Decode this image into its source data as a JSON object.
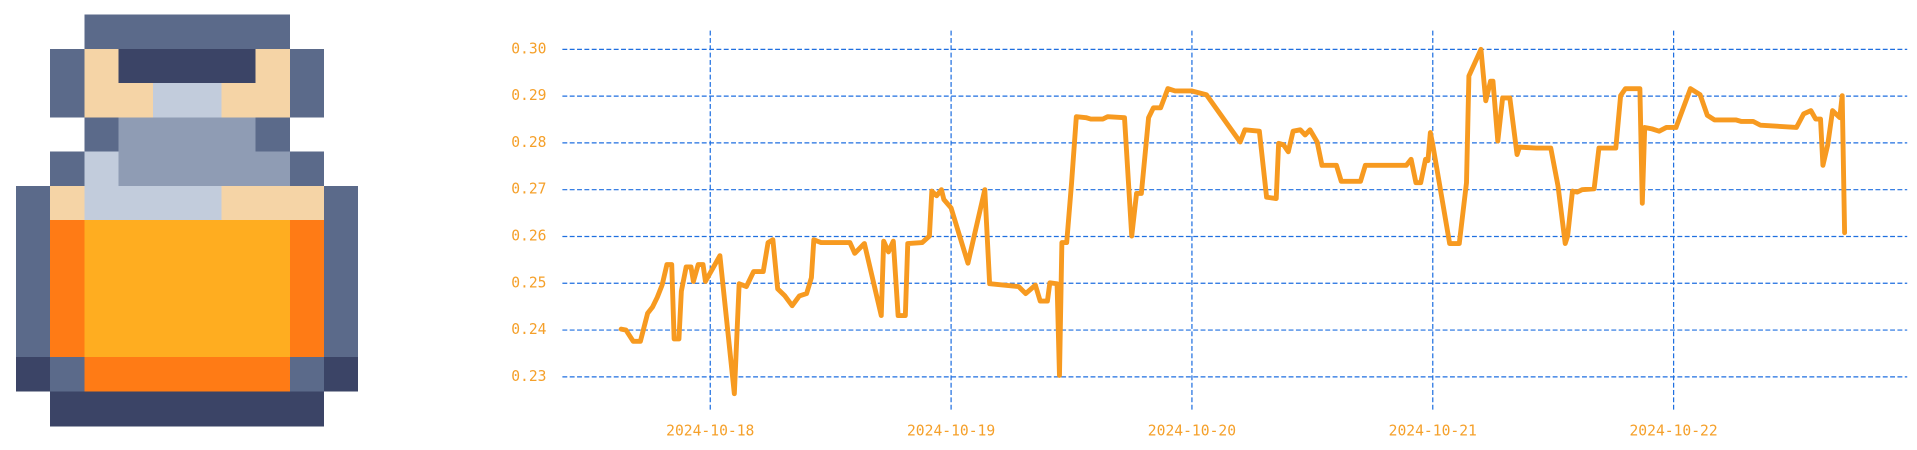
{
  "chart_data": {
    "type": "line",
    "color": "#f79a20",
    "grid": true,
    "grid_color": "#1f6fe0",
    "x": [
      17.63,
      17.65,
      17.68,
      17.71,
      17.74,
      17.76,
      17.78,
      17.8,
      17.82,
      17.84,
      17.85,
      17.87,
      17.88,
      17.9,
      17.92,
      17.93,
      17.95,
      17.97,
      17.98,
      18.04,
      18.1,
      18.12,
      18.15,
      18.18,
      18.22,
      18.24,
      18.26,
      18.28,
      18.31,
      18.34,
      18.37,
      18.4,
      18.42,
      18.43,
      18.46,
      18.49,
      18.58,
      18.6,
      18.64,
      18.71,
      18.72,
      18.74,
      18.76,
      18.78,
      18.81,
      18.82,
      18.88,
      18.91,
      18.92,
      18.94,
      18.96,
      18.97,
      19.0,
      19.07,
      19.14,
      19.16,
      19.28,
      19.31,
      19.35,
      19.37,
      19.4,
      19.41,
      19.44,
      19.45,
      19.46,
      19.48,
      19.5,
      19.52,
      19.56,
      19.58,
      19.63,
      19.65,
      19.72,
      19.75,
      19.77,
      19.79,
      19.82,
      19.84,
      19.87,
      19.9,
      19.93,
      20.0,
      20.06,
      20.2,
      20.22,
      20.28,
      20.31,
      20.35,
      20.36,
      20.38,
      20.4,
      20.42,
      20.45,
      20.47,
      20.49,
      20.52,
      20.54,
      20.6,
      20.62,
      20.7,
      20.72,
      20.89,
      20.91,
      20.93,
      20.95,
      20.97,
      20.98,
      20.99,
      21.0,
      21.07,
      21.11,
      21.14,
      21.15,
      21.2,
      21.22,
      21.24,
      21.25,
      21.27,
      21.29,
      21.32,
      21.35,
      21.36,
      21.43,
      21.49,
      21.52,
      21.55,
      21.56,
      21.58,
      21.6,
      21.62,
      21.67,
      21.69,
      21.76,
      21.78,
      21.8,
      21.86,
      21.87,
      21.88,
      21.91,
      21.94,
      21.97,
      22.01,
      22.07,
      22.11,
      22.14,
      22.17,
      22.26,
      22.28,
      22.33,
      22.36,
      22.51,
      22.54,
      22.57,
      22.59,
      22.61,
      22.62,
      22.64,
      22.66,
      22.69,
      22.7,
      22.71
    ],
    "values": [
      0.2402,
      0.24,
      0.2376,
      0.2376,
      0.2436,
      0.2449,
      0.247,
      0.2496,
      0.254,
      0.254,
      0.2381,
      0.2381,
      0.2483,
      0.2535,
      0.2535,
      0.2504,
      0.254,
      0.254,
      0.2504,
      0.2559,
      0.2264,
      0.2499,
      0.2493,
      0.2525,
      0.2525,
      0.2587,
      0.2593,
      0.2488,
      0.2473,
      0.2452,
      0.2473,
      0.2478,
      0.2512,
      0.2593,
      0.2587,
      0.2587,
      0.2587,
      0.2564,
      0.2585,
      0.2431,
      0.259,
      0.2567,
      0.259,
      0.2431,
      0.2431,
      0.2585,
      0.2587,
      0.2601,
      0.2697,
      0.2687,
      0.27,
      0.2679,
      0.2661,
      0.2543,
      0.27,
      0.2499,
      0.2493,
      0.2478,
      0.2496,
      0.2462,
      0.2462,
      0.2501,
      0.2499,
      0.2303,
      0.2587,
      0.2587,
      0.2713,
      0.2856,
      0.2854,
      0.2851,
      0.2851,
      0.2856,
      0.2854,
      0.2601,
      0.2692,
      0.2692,
      0.2854,
      0.2875,
      0.2875,
      0.2916,
      0.2911,
      0.2911,
      0.2903,
      0.2802,
      0.2828,
      0.2825,
      0.2684,
      0.2681,
      0.2799,
      0.2796,
      0.2781,
      0.2825,
      0.2828,
      0.2817,
      0.2828,
      0.2802,
      0.2752,
      0.2752,
      0.2718,
      0.2718,
      0.2752,
      0.2752,
      0.2765,
      0.2715,
      0.2715,
      0.2765,
      0.2762,
      0.2822,
      0.2796,
      0.2585,
      0.2585,
      0.2715,
      0.2943,
      0.3,
      0.289,
      0.2932,
      0.2932,
      0.2804,
      0.2896,
      0.2896,
      0.2775,
      0.2791,
      0.2789,
      0.2789,
      0.2708,
      0.2585,
      0.2601,
      0.2697,
      0.2695,
      0.27,
      0.2702,
      0.2789,
      0.2789,
      0.2901,
      0.2916,
      0.2916,
      0.2671,
      0.2833,
      0.283,
      0.2825,
      0.2833,
      0.2833,
      0.2916,
      0.2903,
      0.2859,
      0.2849,
      0.2849,
      0.2846,
      0.2846,
      0.2838,
      0.2833,
      0.2862,
      0.2869,
      0.2851,
      0.2851,
      0.2752,
      0.2796,
      0.2869,
      0.2854,
      0.2901,
      0.2608
    ],
    "xlim": [
      17.386,
      22.97
    ],
    "xticks": [
      {
        "value": 18,
        "label": "2024-10-18"
      },
      {
        "value": 19,
        "label": "2024-10-19"
      },
      {
        "value": 20,
        "label": "2024-10-20"
      },
      {
        "value": 21,
        "label": "2024-10-21"
      },
      {
        "value": 22,
        "label": "2024-10-22"
      }
    ],
    "ylim": [
      0.223,
      0.304
    ],
    "yticks": [
      {
        "value": 0.23,
        "label": "0.23"
      },
      {
        "value": 0.24,
        "label": "0.24"
      },
      {
        "value": 0.25,
        "label": "0.25"
      },
      {
        "value": 0.26,
        "label": "0.26"
      },
      {
        "value": 0.27,
        "label": "0.27"
      },
      {
        "value": 0.28,
        "label": "0.28"
      },
      {
        "value": 0.29,
        "label": "0.29"
      },
      {
        "value": 0.3,
        "label": "0.30"
      }
    ]
  }
}
